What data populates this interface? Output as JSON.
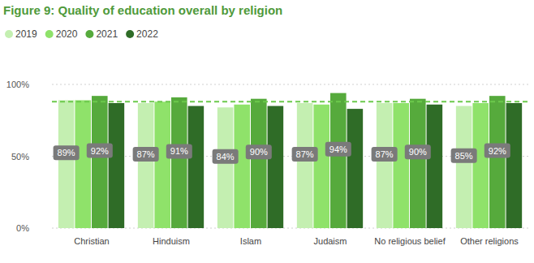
{
  "chart_data": {
    "type": "bar",
    "title": "Figure 9: Quality of education overall by religion",
    "categories": [
      "Christian",
      "Hinduism",
      "Islam",
      "Judaism",
      "No religious belief",
      "Other religions"
    ],
    "series": [
      {
        "name": "2019",
        "color": "#c4efb1",
        "values": [
          89,
          87,
          84,
          87,
          87,
          85
        ],
        "data_labels": true,
        "value_labels": [
          "89%",
          "87%",
          "84%",
          "87%",
          "87%",
          "85%"
        ]
      },
      {
        "name": "2020",
        "color": "#8fe26a",
        "values": [
          89,
          88,
          86,
          86,
          87,
          87
        ]
      },
      {
        "name": "2021",
        "color": "#56aa3c",
        "values": [
          92,
          91,
          90,
          94,
          90,
          92
        ],
        "data_labels": true,
        "value_labels": [
          "92%",
          "91%",
          "90%",
          "94%",
          "90%",
          "92%"
        ]
      },
      {
        "name": "2022",
        "color": "#2f6c27",
        "values": [
          87,
          85,
          85,
          83,
          86,
          87
        ]
      }
    ],
    "reference_line": 88,
    "ylim": [
      0,
      100
    ],
    "yticks": [
      {
        "value": 0,
        "label": "0%"
      },
      {
        "value": 50,
        "label": "50%"
      },
      {
        "value": 100,
        "label": "100%"
      }
    ],
    "grid": true,
    "legend": "top-left"
  }
}
